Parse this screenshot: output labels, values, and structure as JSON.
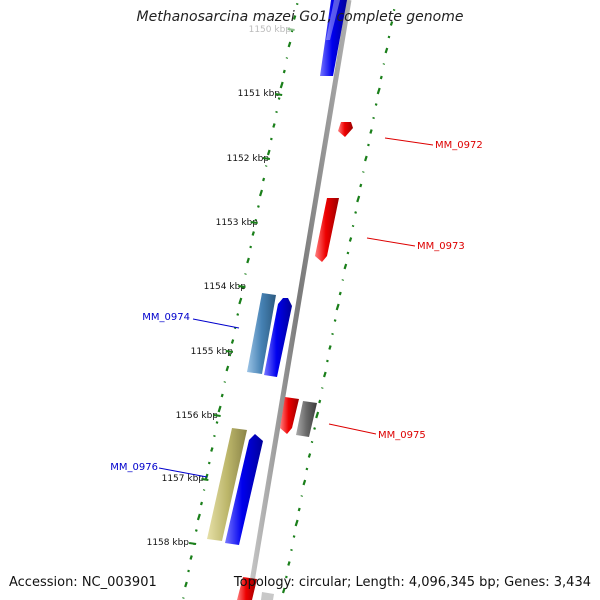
{
  "title": "Methanosarcina mazei Go1, complete genome",
  "footer": {
    "accession": "Accession: NC_003901",
    "topology": "Topology: circular; Length: 4,096,345 bp; Genes: 3,434"
  },
  "axis": {
    "ticks": [
      {
        "label": "1150 kbp",
        "faded": true
      },
      {
        "label": "1151 kbp"
      },
      {
        "label": "1152 kbp"
      },
      {
        "label": "1153 kbp"
      },
      {
        "label": "1154 kbp"
      },
      {
        "label": "1155 kbp"
      },
      {
        "label": "1156 kbp"
      },
      {
        "label": "1157 kbp"
      },
      {
        "label": "1158 kbp"
      }
    ]
  },
  "genes": [
    {
      "name": "MM_0972",
      "strand": "reverse",
      "color": "#dd0000"
    },
    {
      "name": "MM_0973",
      "strand": "reverse",
      "color": "#dd0000"
    },
    {
      "name": "MM_0974",
      "strand": "forward",
      "color": "#0000cc"
    },
    {
      "name": "MM_0975",
      "strand": "reverse",
      "color": "#dd0000"
    },
    {
      "name": "MM_0976",
      "strand": "forward",
      "color": "#0000cc"
    }
  ],
  "colors": {
    "forward_cds": "#0000ee",
    "reverse_cds": "#ee0000",
    "blast_hit_blue": "#4682b4",
    "blast_hit_olive": "#bdb76b",
    "rna_gray": "#696969",
    "gc_skew_dots": "#1a7f1a",
    "backbone": "#8a8a8a"
  }
}
